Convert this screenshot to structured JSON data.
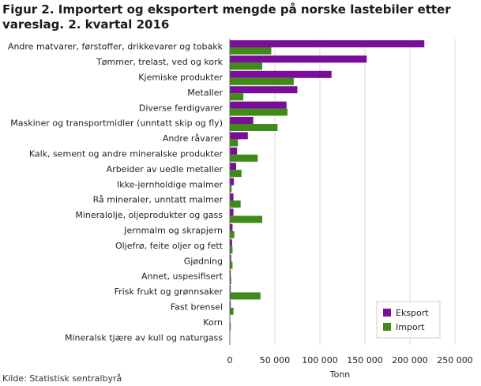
{
  "title": "Figur 2. Importert og eksportert mengde på norske lastebiler etter vareslag. 2. kvartal 2016",
  "source": "Kilde: Statistisk sentralbyrå",
  "colors": {
    "eksport": "#7a0e9b",
    "import": "#3f8a18",
    "grid": "#d9d9d9",
    "axis": "#666666"
  },
  "chart_data": {
    "type": "bar",
    "orientation": "horizontal",
    "categories": [
      "Andre matvarer, førstoffer, drikkevarer og tobakk",
      "Tømmer, trelast, ved og kork",
      "Kjemiske produkter",
      "Metaller",
      "Diverse ferdigvarer",
      "Maskiner og transportmidler (unntatt skip og fly)",
      "Andre råvarer",
      "Kalk, sement og andre mineralske produkter",
      "Arbeider av uedle metaller",
      "Ikke-jernholdige malmer",
      "Rå mineraler, unntatt malmer",
      "Mineralolje, oljeprodukter og gass",
      "Jernmalm og skrapjern",
      "Oljefrø, feite oljer og fett",
      "Gjødning",
      "Annet, uspesifisert",
      "Frisk frukt og grønnsaker",
      "Fast brensel",
      "Korn",
      "Mineralsk tjære av kull og naturgass"
    ],
    "series": [
      {
        "name": "Eksport",
        "values": [
          216000,
          152000,
          113000,
          75000,
          63000,
          26000,
          20000,
          8000,
          7000,
          4500,
          4000,
          4000,
          3000,
          2500,
          1500,
          1000,
          1000,
          1000,
          500,
          0
        ]
      },
      {
        "name": "Import",
        "values": [
          46000,
          36000,
          71000,
          15000,
          64000,
          53000,
          9000,
          31000,
          13000,
          2000,
          12000,
          36000,
          5000,
          3000,
          3000,
          1500,
          34000,
          4000,
          1000,
          0
        ]
      }
    ],
    "xlabel": "Tonn",
    "xlim": [
      0,
      250000
    ],
    "xticks": [
      0,
      50000,
      100000,
      150000,
      200000,
      250000
    ],
    "xtick_labels": [
      "0",
      "50 000",
      "100 000",
      "150 000",
      "200 000",
      "250 000"
    ],
    "grid": true,
    "legend": "bottom-right"
  }
}
